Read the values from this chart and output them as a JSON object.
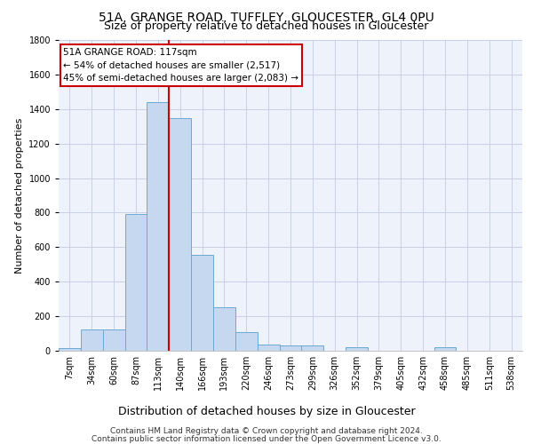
{
  "title_line1": "51A, GRANGE ROAD, TUFFLEY, GLOUCESTER, GL4 0PU",
  "title_line2": "Size of property relative to detached houses in Gloucester",
  "xlabel": "Distribution of detached houses by size in Gloucester",
  "ylabel": "Number of detached properties",
  "bar_labels": [
    "7sqm",
    "34sqm",
    "60sqm",
    "87sqm",
    "113sqm",
    "140sqm",
    "166sqm",
    "193sqm",
    "220sqm",
    "246sqm",
    "273sqm",
    "299sqm",
    "326sqm",
    "352sqm",
    "379sqm",
    "405sqm",
    "432sqm",
    "458sqm",
    "485sqm",
    "511sqm",
    "538sqm"
  ],
  "bar_values": [
    15,
    125,
    125,
    790,
    1440,
    1345,
    555,
    250,
    110,
    35,
    30,
    30,
    0,
    20,
    0,
    0,
    0,
    20,
    0,
    0,
    0
  ],
  "bar_color": "#c5d8f0",
  "bar_edge_color": "#6aaad4",
  "vline_index": 4.5,
  "annotation_text": "51A GRANGE ROAD: 117sqm\n← 54% of detached houses are smaller (2,517)\n45% of semi-detached houses are larger (2,083) →",
  "vline_color": "#cc0000",
  "box_edge_color": "#cc0000",
  "ylim": [
    0,
    1800
  ],
  "yticks": [
    0,
    200,
    400,
    600,
    800,
    1000,
    1200,
    1400,
    1600,
    1800
  ],
  "footer_line1": "Contains HM Land Registry data © Crown copyright and database right 2024.",
  "footer_line2": "Contains public sector information licensed under the Open Government Licence v3.0.",
  "bg_color": "#eef2fb",
  "grid_color": "#c8d0e8",
  "title_fontsize": 10,
  "subtitle_fontsize": 9,
  "xlabel_fontsize": 9,
  "ylabel_fontsize": 8,
  "tick_fontsize": 7,
  "annotation_fontsize": 7.5,
  "footer_fontsize": 6.5
}
